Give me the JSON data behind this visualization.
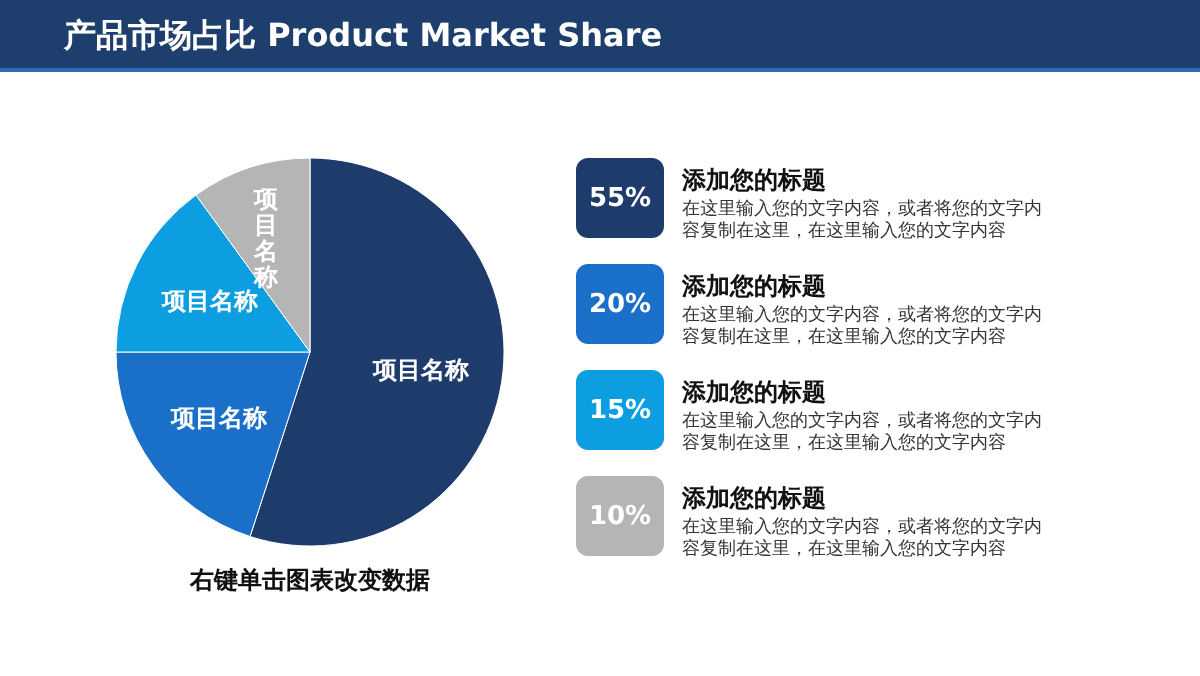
{
  "chart_data": [
    {
      "type": "pie",
      "title": "产品市场占比  Product Market Share",
      "categories": [
        "项目名称",
        "项目名称",
        "项目名称",
        "项目名称"
      ],
      "values": [
        55,
        20,
        15,
        10
      ],
      "colors": [
        "#1d3c6b",
        "#1a6fc9",
        "#0c9ee0",
        "#b5b5b5"
      ],
      "annotations": [
        "右键单击图表改变数据"
      ]
    },
    {
      "type": "other",
      "colors": [
        "#1d3c6b",
        "#1a6fc9",
        "#0c9ee0",
        "#a6a6a6"
      ],
      "annotations": [
        "55%",
        "添加您的标题",
        "在这里输入您的文字内容，或者将您的文字内容复制在这里，在这里输入您的文字内容",
        "20%",
        "添加您的标题",
        "在这里输入您的文字内容，或者将您的文字内容复制在这里，在这里输入您的文字内容",
        "15%",
        "添加您的标题",
        "在这里输入您的文字内容，或者将您的文字内容复制在这里，在这里输入您的文字内容",
        "10%",
        "添加您的标题",
        "在这里输入您的文字内容，或者将您的文字内容复制在这里，在这里输入您的文字内容"
      ]
    }
  ]
}
